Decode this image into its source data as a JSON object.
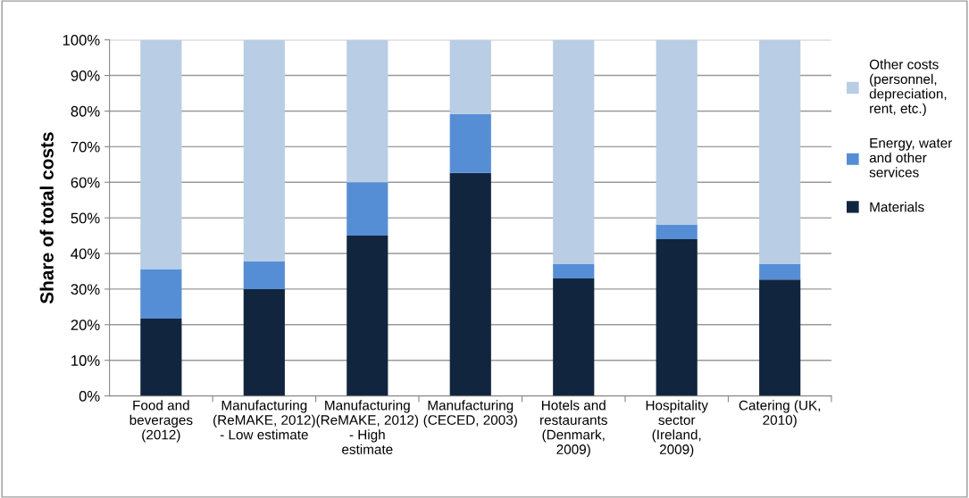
{
  "chart_data": {
    "type": "bar",
    "stacked": true,
    "ylabel": "Share of total costs",
    "categories": [
      "Food and beverages (2012)",
      "Manufacturing (ReMAKE, 2012) - Low estimate",
      "Manufacturing (ReMAKE, 2012) - High estimate",
      "Manufacturing (CECED, 2003)",
      "Hotels and restaurants (Denmark, 2009)",
      "Hospitality sector (Ireland, 2009)",
      "Catering (UK, 2010)"
    ],
    "series": [
      {
        "name": "Materials",
        "color": "#12253f",
        "values": [
          21.7,
          30,
          45,
          62.6,
          33,
          44,
          32.7
        ]
      },
      {
        "name": "Energy, water and other services",
        "color": "#558ed5",
        "values": [
          13.9,
          7.8,
          15,
          16.6,
          4,
          4,
          4.3
        ]
      },
      {
        "name": "Other costs (personnel, depreciation, rent, etc.)",
        "color": "#b9cde5",
        "values": [
          64.4,
          62.2,
          40,
          20.8,
          63,
          52,
          63
        ]
      }
    ],
    "ylim": [
      0,
      100
    ],
    "yticks": [
      {
        "value": 0,
        "label": "0%"
      },
      {
        "value": 10,
        "label": "10%"
      },
      {
        "value": 20,
        "label": "20%"
      },
      {
        "value": 30,
        "label": "30%"
      },
      {
        "value": 40,
        "label": "40%"
      },
      {
        "value": 50,
        "label": "50%"
      },
      {
        "value": 60,
        "label": "60%"
      },
      {
        "value": 70,
        "label": "70%"
      },
      {
        "value": 80,
        "label": "80%"
      },
      {
        "value": 90,
        "label": "90%"
      },
      {
        "value": 100,
        "label": "100%"
      }
    ],
    "grid": "y",
    "legend": "right"
  }
}
